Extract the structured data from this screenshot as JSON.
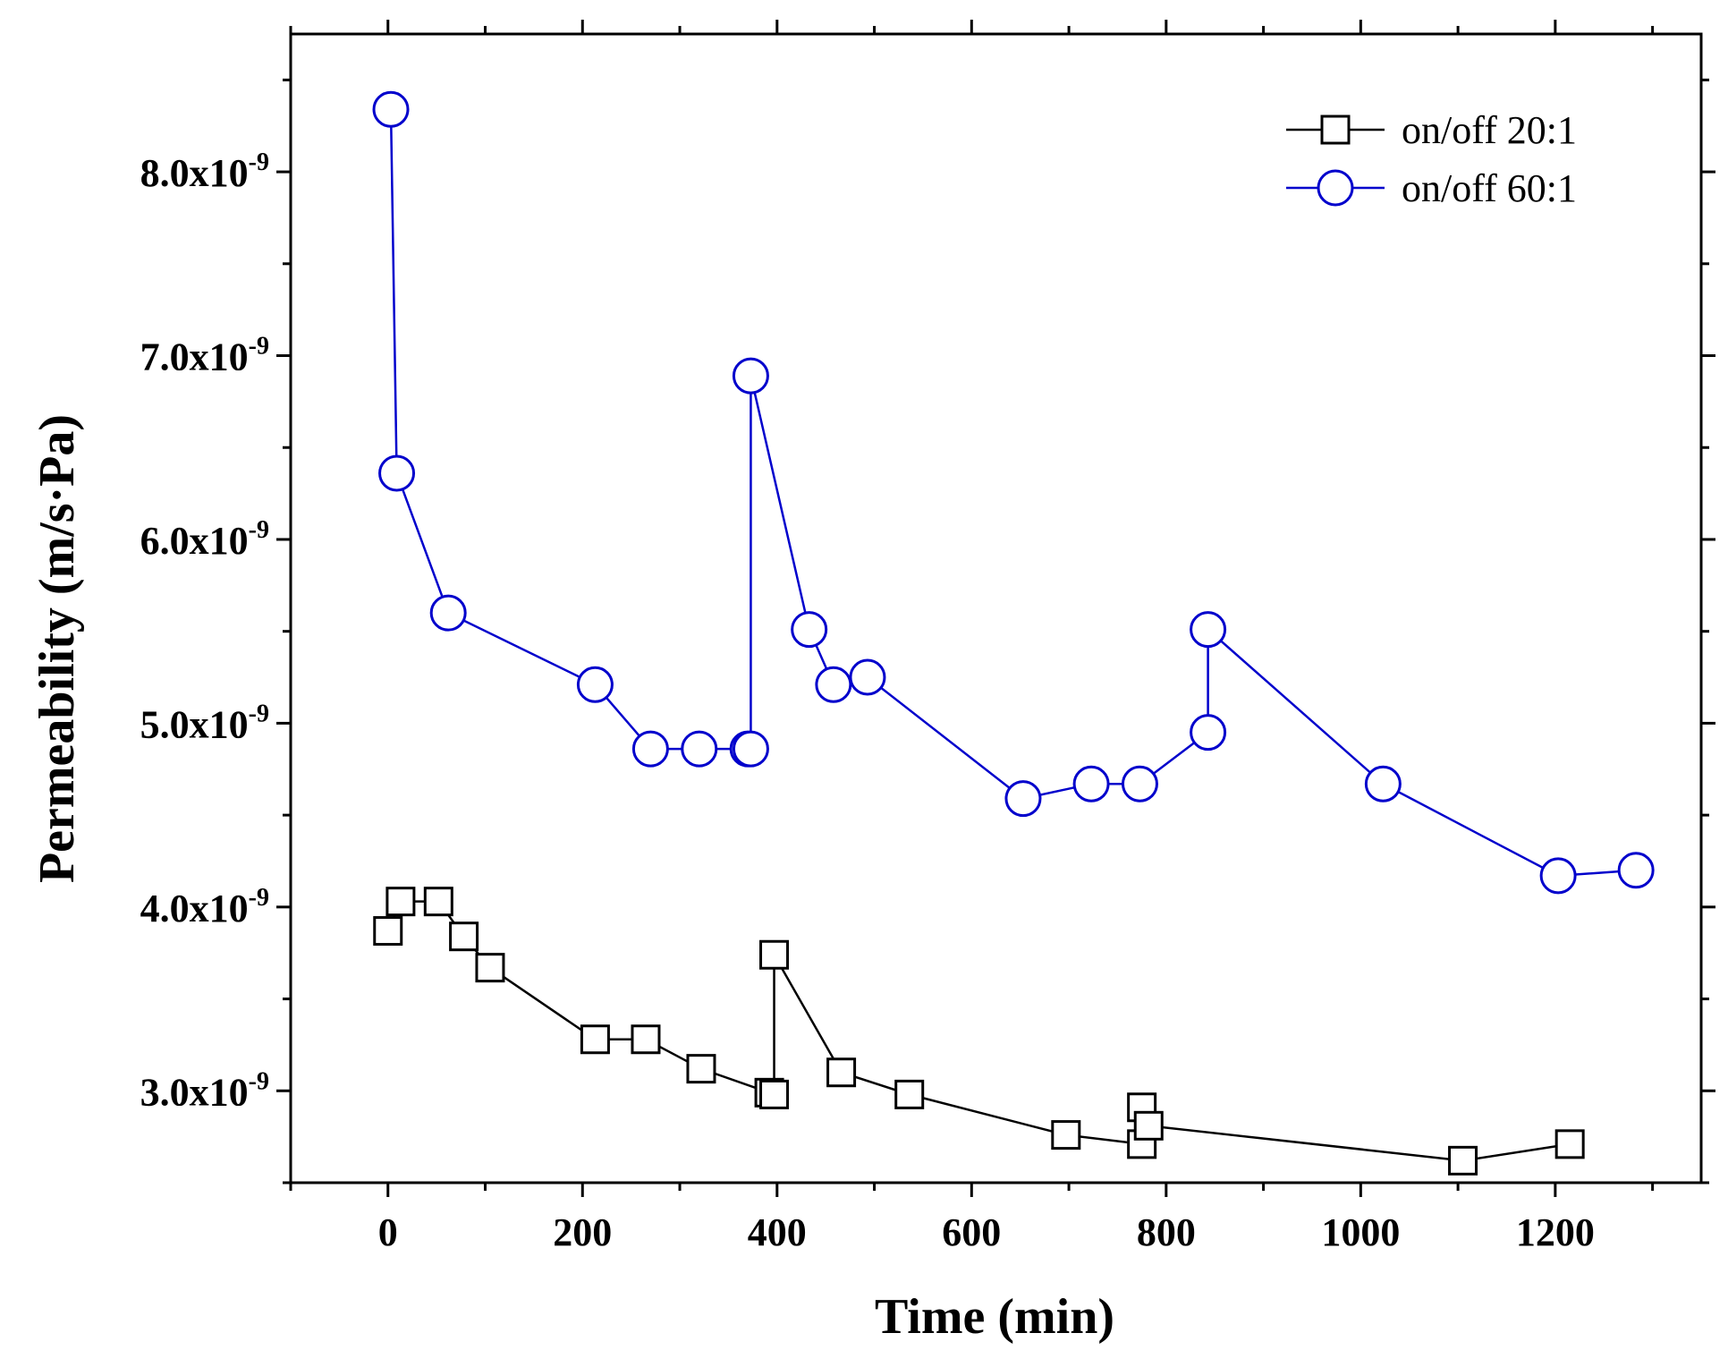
{
  "chart_data": {
    "type": "line",
    "title": "",
    "xlabel": "Time (min)",
    "ylabel": "Permeability (m/s·Pa)",
    "xlim": [
      -100,
      1350
    ],
    "ylim": [
      2.5e-09,
      8.75e-09
    ],
    "xticks": [
      0,
      200,
      400,
      600,
      800,
      1000,
      1200
    ],
    "xtick_labels": [
      "0",
      "200",
      "400",
      "600",
      "800",
      "1000",
      "1200"
    ],
    "yticks": [
      3e-09,
      4e-09,
      5e-09,
      6e-09,
      7e-09,
      8e-09
    ],
    "ytick_labels": [
      {
        "mantissa": "3.0x10",
        "exponent": "-9"
      },
      {
        "mantissa": "4.0x10",
        "exponent": "-9"
      },
      {
        "mantissa": "5.0x10",
        "exponent": "-9"
      },
      {
        "mantissa": "6.0x10",
        "exponent": "-9"
      },
      {
        "mantissa": "7.0x10",
        "exponent": "-9"
      },
      {
        "mantissa": "8.0x10",
        "exponent": "-9"
      }
    ],
    "legend_position": "top-right",
    "series": [
      {
        "name": "on/off 20:1",
        "color": "#000000",
        "marker": "square",
        "x": [
          0,
          13,
          52,
          78,
          105,
          213,
          265,
          322,
          392,
          397,
          397,
          466,
          536,
          697,
          775,
          775,
          782,
          1105,
          1215
        ],
        "y": [
          3.87e-09,
          4.03e-09,
          4.03e-09,
          3.84e-09,
          3.67e-09,
          3.28e-09,
          3.28e-09,
          3.12e-09,
          2.99e-09,
          2.98e-09,
          3.74e-09,
          3.1e-09,
          2.98e-09,
          2.76e-09,
          2.71e-09,
          2.91e-09,
          2.81e-09,
          2.62e-09,
          2.71e-09
        ]
      },
      {
        "name": "on/off 60:1",
        "color": "#0000cc",
        "marker": "circle",
        "x": [
          3,
          9,
          62,
          213,
          270,
          320,
          370,
          373,
          373,
          433,
          458,
          493,
          653,
          723,
          773,
          843,
          843,
          1023,
          1203,
          1283
        ],
        "y": [
          8.34e-09,
          6.36e-09,
          5.6e-09,
          5.21e-09,
          4.86e-09,
          4.86e-09,
          4.86e-09,
          4.86e-09,
          6.89e-09,
          5.51e-09,
          5.21e-09,
          5.25e-09,
          4.59e-09,
          4.67e-09,
          4.67e-09,
          4.95e-09,
          5.51e-09,
          4.67e-09,
          4.17e-09,
          4.2e-09
        ]
      }
    ]
  }
}
